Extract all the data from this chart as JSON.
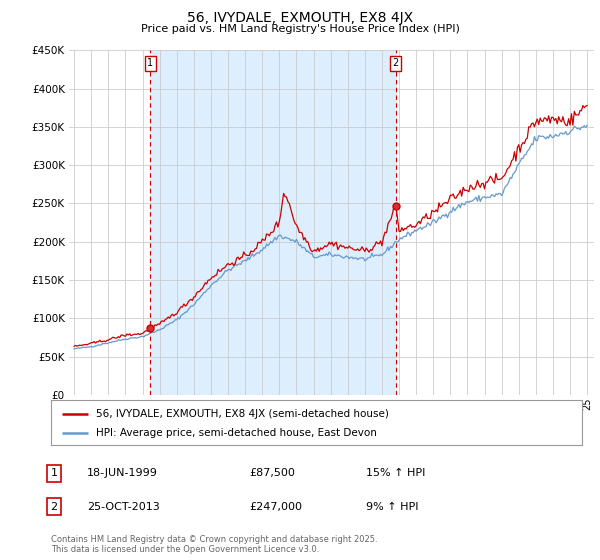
{
  "title": "56, IVYDALE, EXMOUTH, EX8 4JX",
  "subtitle": "Price paid vs. HM Land Registry's House Price Index (HPI)",
  "ylim": [
    0,
    450000
  ],
  "xlim_start": 1994.7,
  "xlim_end": 2025.4,
  "purchase1_x": 1999.46,
  "purchase1_y": 87500,
  "purchase1_label": "1",
  "purchase1_date": "18-JUN-1999",
  "purchase1_price": "£87,500",
  "purchase1_hpi": "15% ↑ HPI",
  "purchase2_x": 2013.81,
  "purchase2_y": 247000,
  "purchase2_label": "2",
  "purchase2_date": "25-OCT-2013",
  "purchase2_price": "£247,000",
  "purchase2_hpi": "9% ↑ HPI",
  "line1_color": "#cc0000",
  "line2_color": "#6699cc",
  "vline_color": "#cc0000",
  "fill_color": "#ddeeff",
  "legend_label1": "56, IVYDALE, EXMOUTH, EX8 4JX (semi-detached house)",
  "legend_label2": "HPI: Average price, semi-detached house, East Devon",
  "copyright_text": "Contains HM Land Registry data © Crown copyright and database right 2025.\nThis data is licensed under the Open Government Licence v3.0.",
  "background_color": "#ffffff",
  "plot_bg_color": "#ffffff",
  "grid_color": "#cccccc"
}
